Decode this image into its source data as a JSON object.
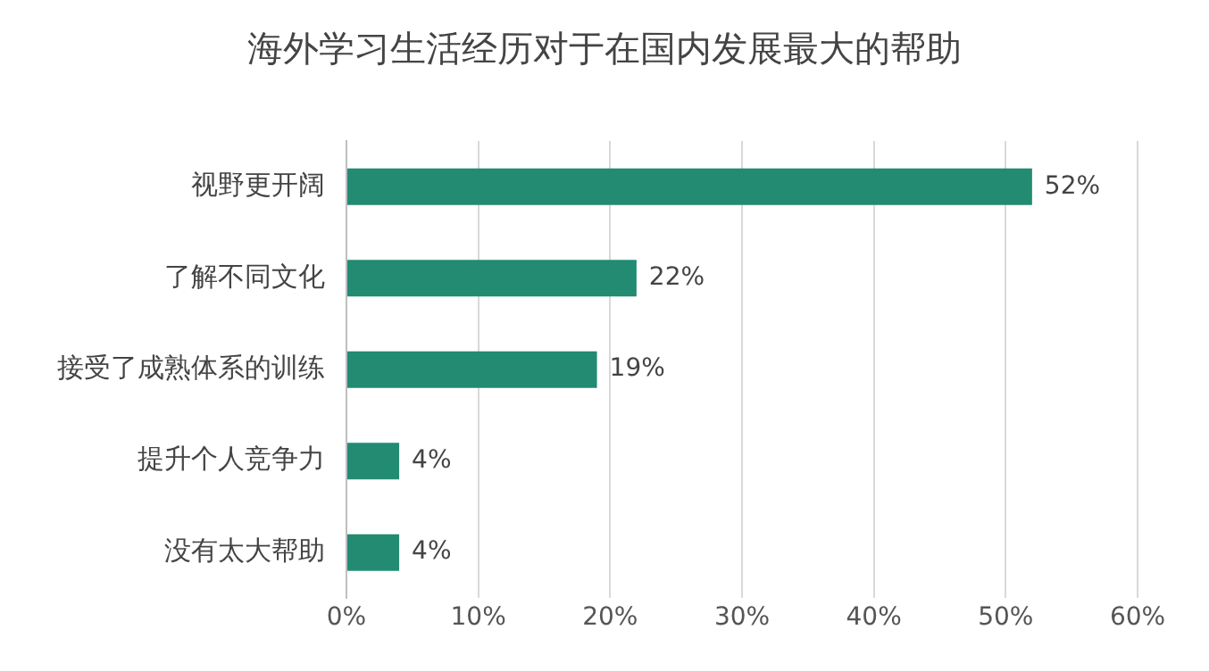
{
  "chart_data": {
    "type": "bar",
    "orientation": "horizontal",
    "title": "海外学习生活经历对于在国内发展最大的帮助",
    "categories": [
      "视野更开阔",
      "了解不同文化",
      "接受了成熟体系的训练",
      "提升个人竞争力",
      "没有太大帮助"
    ],
    "values": [
      52,
      22,
      19,
      4,
      4
    ],
    "value_labels": [
      "52%",
      "22%",
      "19%",
      "4%",
      "4%"
    ],
    "color": "#228b72",
    "xlim": [
      0,
      60
    ],
    "xticks": [
      {
        "value": 0,
        "label": "0%"
      },
      {
        "value": 10,
        "label": "10%"
      },
      {
        "value": 20,
        "label": "20%"
      },
      {
        "value": 30,
        "label": "30%"
      },
      {
        "value": 40,
        "label": "40%"
      },
      {
        "value": 50,
        "label": "50%"
      },
      {
        "value": 60,
        "label": "60%"
      }
    ],
    "grid": "x",
    "legend": false
  }
}
